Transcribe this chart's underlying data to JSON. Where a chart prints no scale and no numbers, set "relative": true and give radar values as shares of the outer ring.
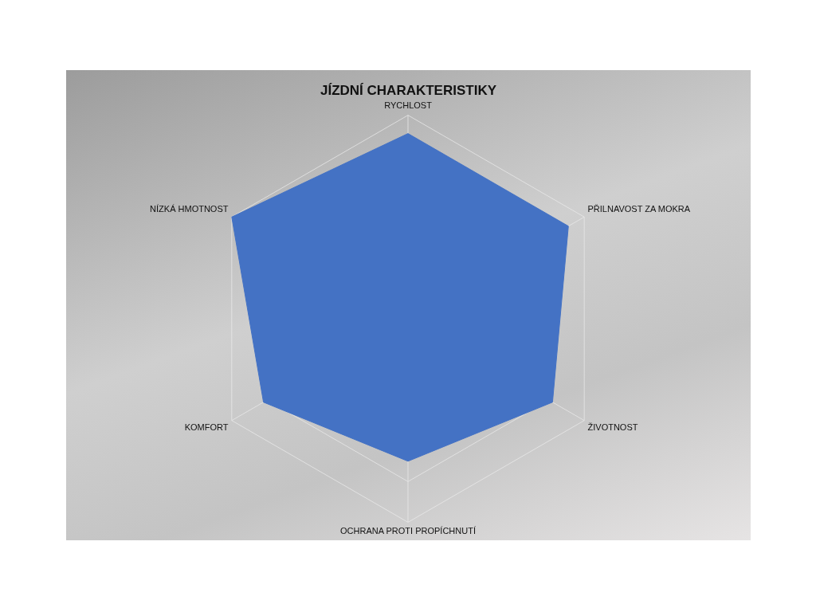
{
  "chart_data": {
    "type": "radar",
    "title": "JÍZDNÍ CHARAKTERISTIKY",
    "categories": [
      "RYCHLOST",
      "PŘILNAVOST ZA MOKRA",
      "ŽIVOTNOST",
      "OCHRANA PROTI PROPÍCHNUTÍ",
      "KOMFORT",
      "NÍZKÁ HMOTNOST"
    ],
    "series": [
      {
        "color": "#4472c4",
        "values": [
          0.91,
          0.91,
          0.82,
          0.7,
          0.82,
          1.0
        ]
      }
    ],
    "relative": true,
    "grid": true,
    "legend": false,
    "marker": "none"
  }
}
